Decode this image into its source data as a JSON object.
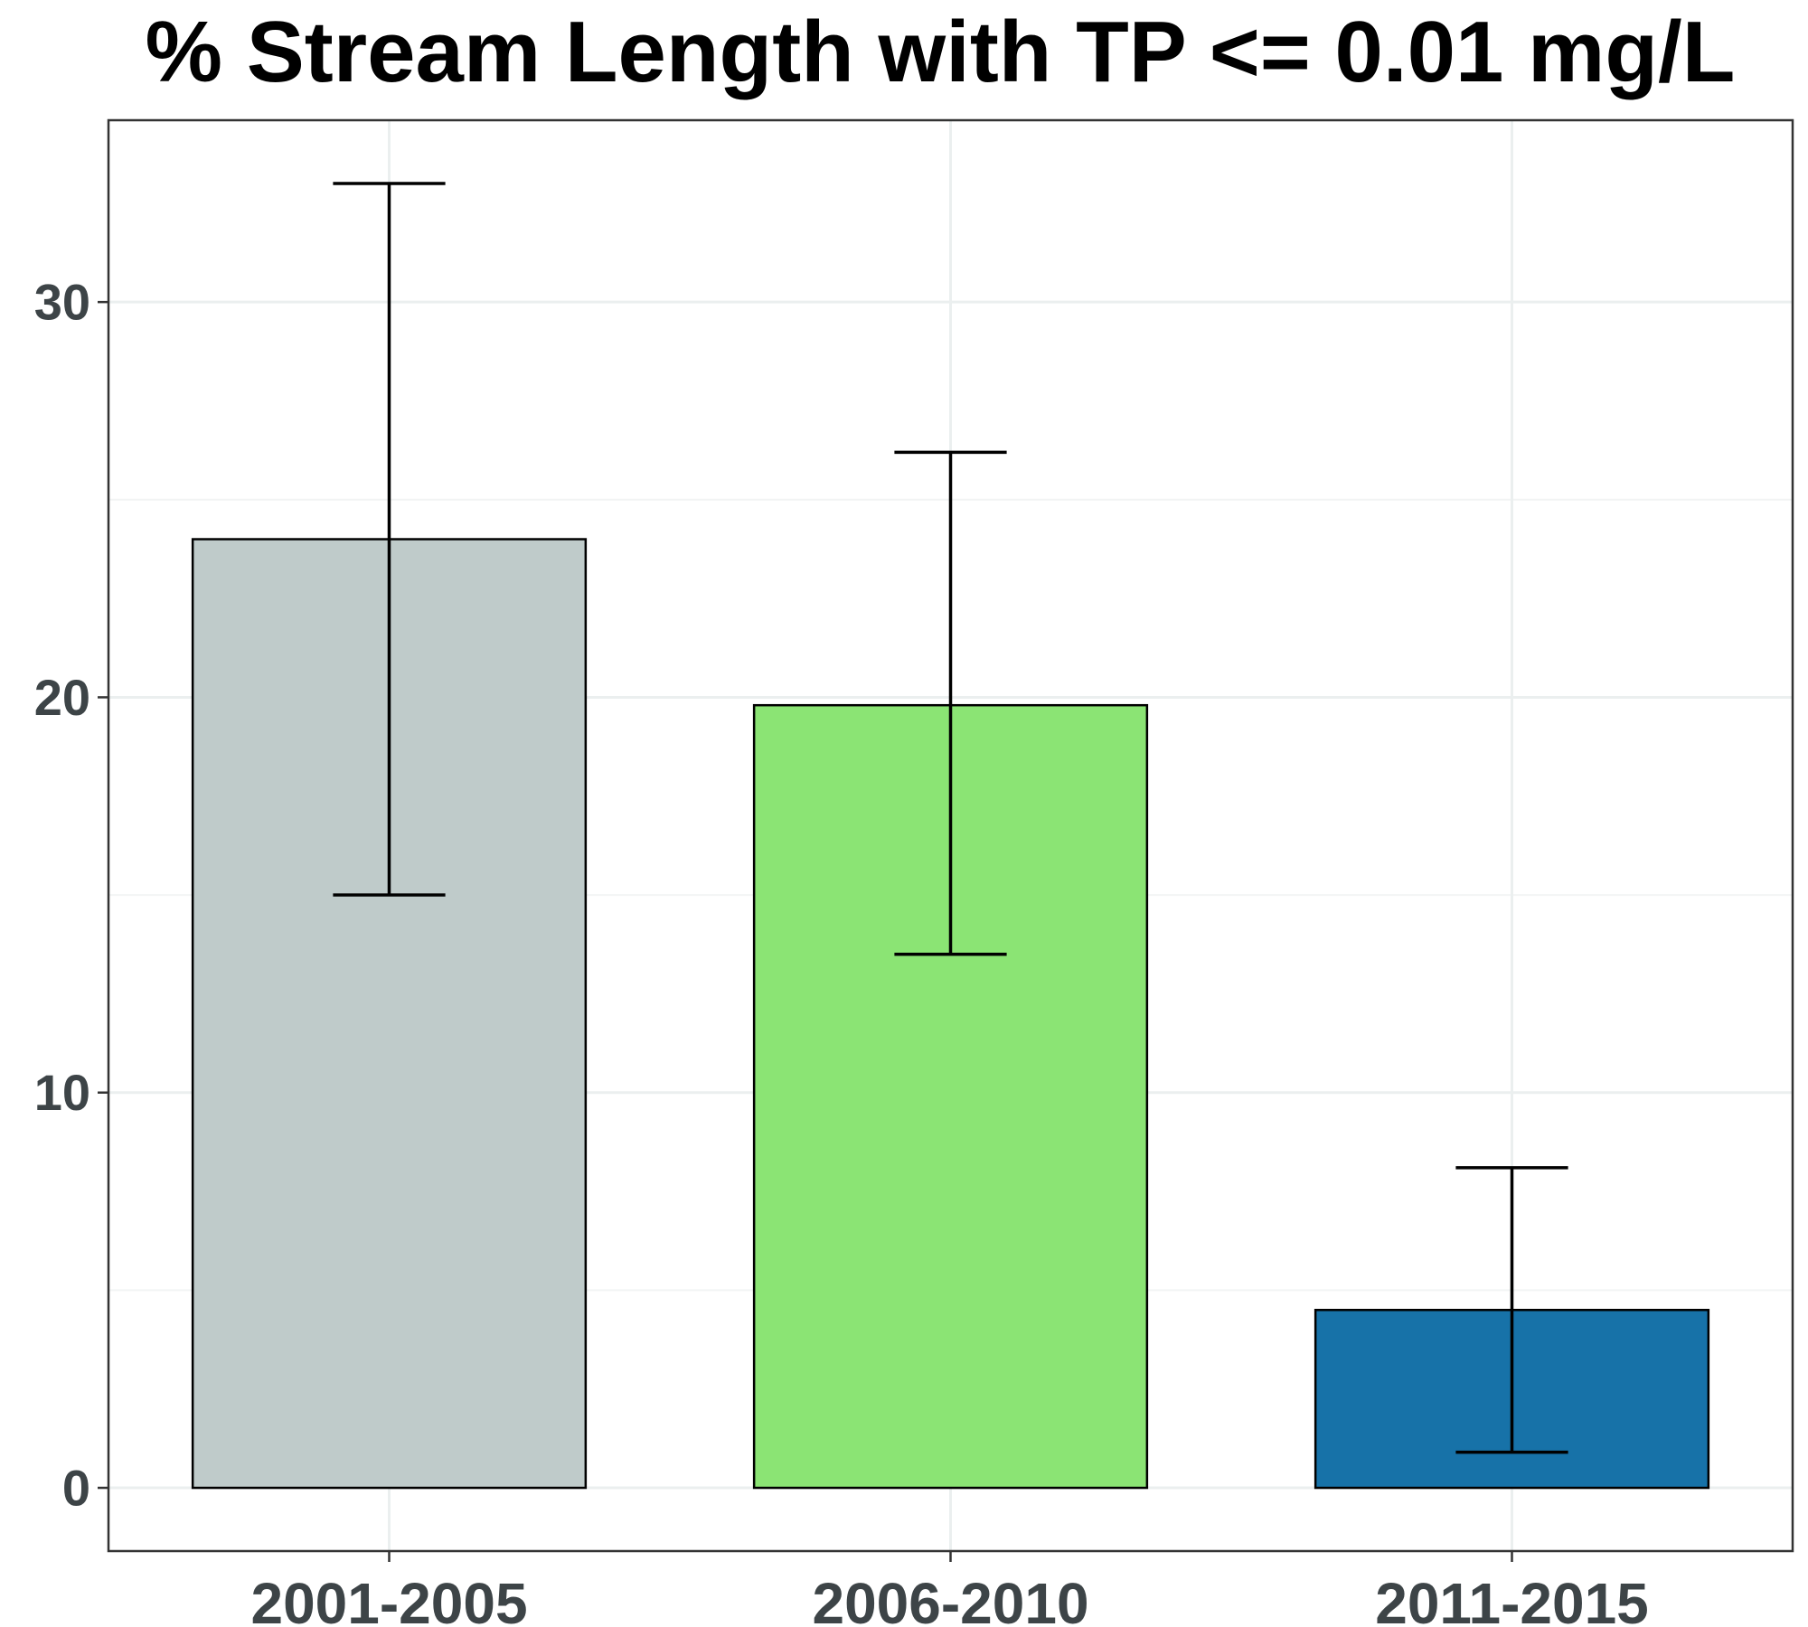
{
  "chart_data": {
    "type": "bar",
    "title": "% Stream Length with TP <= 0.01 mg/L",
    "xlabel": "",
    "ylabel": "",
    "categories": [
      "2001-2005",
      "2006-2010",
      "2011-2015"
    ],
    "values": [
      24.0,
      19.8,
      4.5
    ],
    "error_low": [
      15.0,
      13.5,
      0.9
    ],
    "error_high": [
      33.0,
      26.2,
      8.1
    ],
    "colors": [
      "#bfcbca",
      "#8be474",
      "#1772a8"
    ],
    "ylim": [
      -1.6,
      34.6
    ],
    "yticks": [
      0,
      10,
      20,
      30
    ],
    "grid": true,
    "legend": "none"
  }
}
